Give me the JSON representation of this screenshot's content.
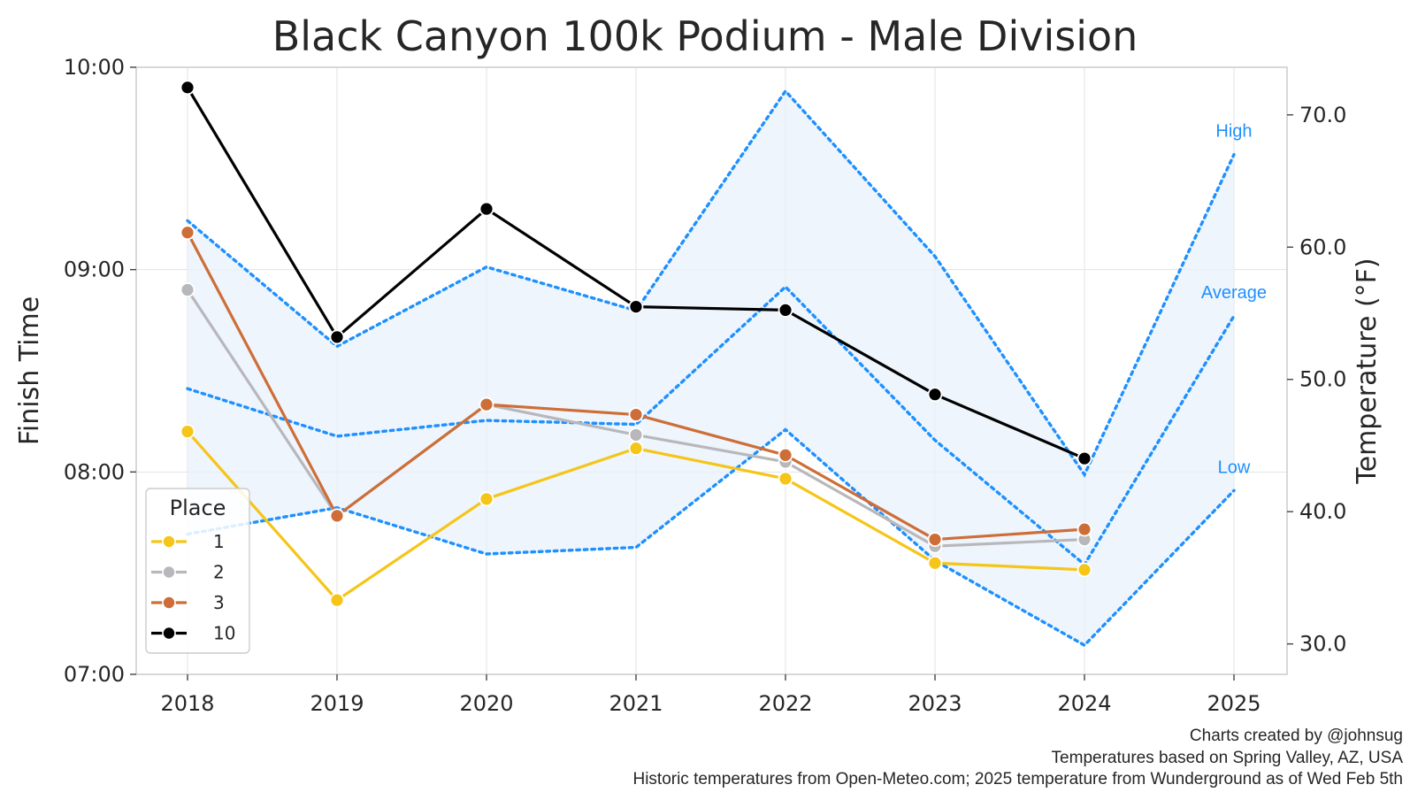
{
  "chart_data": {
    "type": "line",
    "title": "Black Canyon 100k Podium - Male Division",
    "xlabel": "",
    "ylabel": "Finish Time",
    "y2label": "Temperature (°F)",
    "x": [
      "2018",
      "2019",
      "2020",
      "2021",
      "2022",
      "2023",
      "2024",
      "2025"
    ],
    "ylim_minutes": [
      420,
      600
    ],
    "y_ticks": [
      {
        "value": 420,
        "label": "07:00"
      },
      {
        "value": 480,
        "label": "08:00"
      },
      {
        "value": 540,
        "label": "09:00"
      },
      {
        "value": 600,
        "label": "10:00"
      }
    ],
    "y2lim": [
      27.7,
      73.6
    ],
    "y2_ticks": [
      {
        "value": 30,
        "label": "30.0"
      },
      {
        "value": 40,
        "label": "40.0"
      },
      {
        "value": 50,
        "label": "50.0"
      },
      {
        "value": 60,
        "label": "60.0"
      },
      {
        "value": 70,
        "label": "70.0"
      }
    ],
    "legend": {
      "title": "Place",
      "location": "lower-left"
    },
    "series": [
      {
        "name": "1",
        "color": "#f5c518",
        "values": [
          "08:12",
          "07:22",
          "07:52",
          "08:07",
          "07:58",
          "07:33",
          "07:31",
          null
        ]
      },
      {
        "name": "2",
        "color": "#b8b8bc",
        "values": [
          "08:54",
          "07:47",
          "08:20",
          "08:11",
          "08:03",
          "07:38",
          "07:40",
          null
        ]
      },
      {
        "name": "3",
        "color": "#cd6e38",
        "values": [
          "09:11",
          "07:47",
          "08:20",
          "08:17",
          "08:05",
          "07:40",
          "07:43",
          null
        ]
      },
      {
        "name": "10",
        "color": "#000000",
        "values": [
          "09:54",
          "08:40",
          "09:18",
          "08:49",
          "08:48",
          "08:23",
          "08:04",
          null
        ]
      }
    ],
    "temperature": {
      "color": "#1e90ff",
      "fill_color": "#e8f2fb",
      "series": [
        {
          "name": "High",
          "values": [
            62.0,
            52.5,
            58.5,
            55.2,
            71.8,
            59.3,
            42.8,
            67.0
          ]
        },
        {
          "name": "Average",
          "values": [
            49.3,
            45.7,
            46.9,
            46.6,
            57.0,
            45.4,
            36.0,
            54.8
          ]
        },
        {
          "name": "Low",
          "values": [
            38.3,
            40.3,
            36.8,
            37.3,
            46.2,
            36.3,
            29.9,
            41.6
          ]
        }
      ]
    }
  },
  "credits": [
    "Charts created by @johnsug",
    "Temperatures based on Spring Valley, AZ, USA",
    "Historic temperatures from Open-Meteo.com; 2025 temperature from Wunderground as of Wed Feb 5th"
  ]
}
